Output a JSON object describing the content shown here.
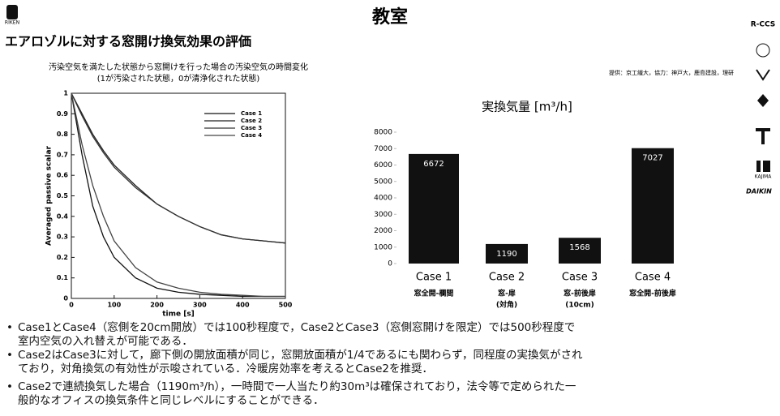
{
  "header": {
    "title": "教室",
    "subtitle": "エアロゾルに対する窓開け換気効果の評価",
    "credit": "提供：京工繊大，協力：神戸大，鹿島建設，理研",
    "logos": [
      "RIKEN",
      "R-CCS",
      "KAJIMA",
      "DAIKIN"
    ]
  },
  "chart_data": [
    {
      "type": "line",
      "title": "汚染空気を満たした状態から窓開けを行った場合の汚染空気の時間変化",
      "subtitle": "(1が汚染された状態，0が清浄化された状態)",
      "x_label": "time [s]",
      "y_label": "Averaged passive scalar",
      "x": [
        0,
        25,
        50,
        75,
        100,
        150,
        200,
        250,
        300,
        350,
        400,
        450,
        500
      ],
      "series": [
        {
          "name": "Case 1",
          "color": "#111111",
          "values": [
            1,
            0.7,
            0.45,
            0.3,
            0.2,
            0.1,
            0.05,
            0.03,
            0.02,
            0.015,
            0.01,
            0.01,
            0.01
          ]
        },
        {
          "name": "Case 2",
          "color": "#222222",
          "values": [
            1,
            0.9,
            0.8,
            0.72,
            0.65,
            0.55,
            0.46,
            0.4,
            0.35,
            0.31,
            0.29,
            0.28,
            0.27
          ]
        },
        {
          "name": "Case 3",
          "color": "#333333",
          "values": [
            1,
            0.89,
            0.79,
            0.71,
            0.64,
            0.54,
            0.46,
            0.4,
            0.35,
            0.31,
            0.29,
            0.28,
            0.27
          ]
        },
        {
          "name": "Case 4",
          "color": "#444444",
          "values": [
            1,
            0.75,
            0.55,
            0.4,
            0.28,
            0.15,
            0.08,
            0.05,
            0.03,
            0.02,
            0.015,
            0.01,
            0.01
          ]
        }
      ],
      "xlim": [
        0,
        500
      ],
      "xticks": [
        0,
        100,
        200,
        300,
        400,
        500
      ],
      "ylim": [
        0,
        1
      ],
      "yticks": [
        0,
        0.1,
        0.2,
        0.3,
        0.4,
        0.5,
        0.6,
        0.7,
        0.8,
        0.9,
        1
      ]
    },
    {
      "type": "bar",
      "title": "実換気量 [m³/h]",
      "categories": [
        "Case 1",
        "Case 2",
        "Case 3",
        "Case 4"
      ],
      "sublabels": [
        [
          "窓全開-欄間"
        ],
        [
          "窓-扉",
          "(対角)"
        ],
        [
          "窓-前後扉",
          "(10cm)"
        ],
        [
          "窓全開-前後扉"
        ]
      ],
      "values": [
        6672,
        1190,
        1568,
        7027
      ],
      "color": "#111111",
      "ylim": [
        0,
        8000
      ],
      "yticks": [
        0,
        1000,
        2000,
        3000,
        4000,
        5000,
        6000,
        7000,
        8000
      ]
    }
  ],
  "bullets": [
    "Case1とCase4（窓側を20cm開放）では100秒程度で，Case2とCase3（窓側窓開けを限定）では500秒程度で室内空気の入れ替えが可能である．",
    "Case2はCase3に対して，廊下側の開放面積が同じ，窓開放面積が1/4であるにも関わらず，同程度の実換気がされており，対角換気の有効性が示唆されている．冷暖房効率を考えるとCase2を推奨．",
    "Case2で連続換気した場合（1190m³/h），一時間で一人当たり約30m³は確保されており，法令等で定められた一般的なオフィスの換気条件と同じレベルにすることができる．"
  ]
}
